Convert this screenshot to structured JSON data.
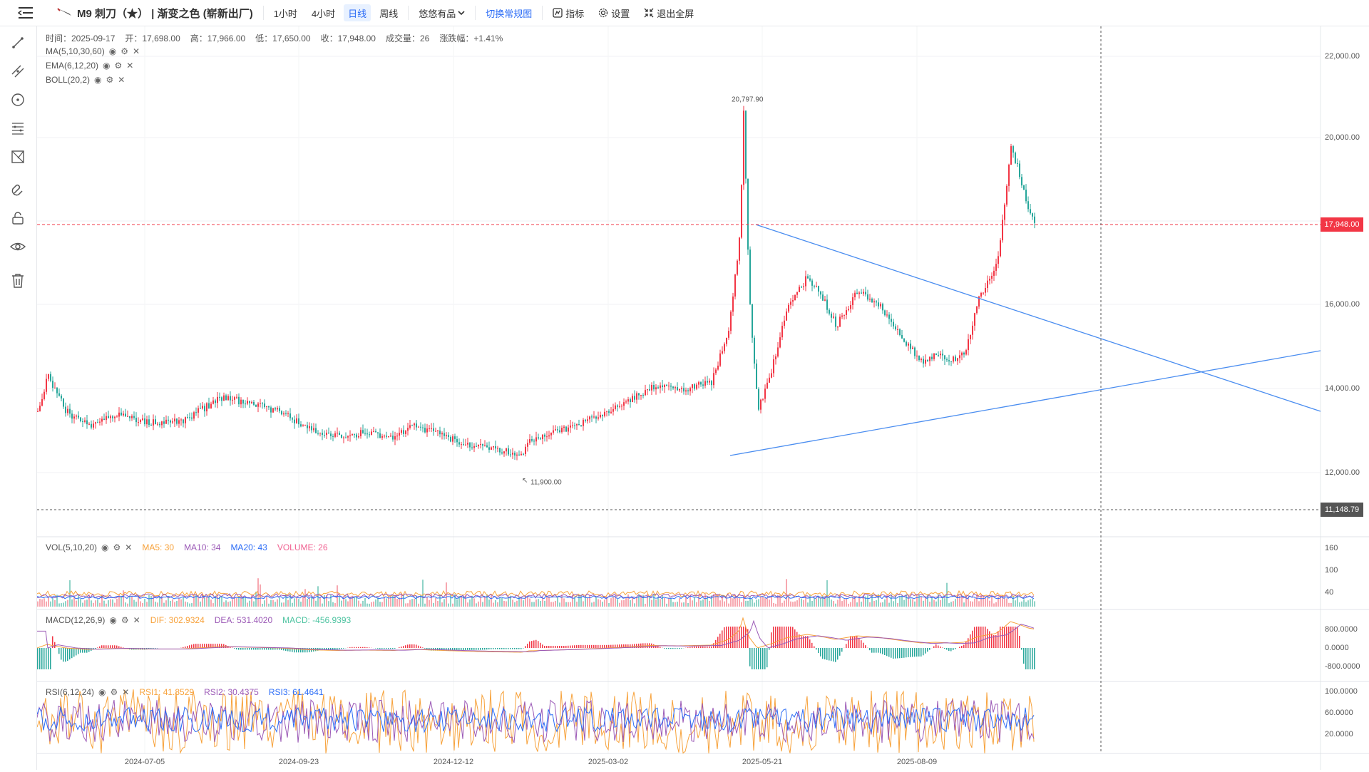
{
  "topbar": {
    "symbol": "M9 刺刀（★） | 渐变之色 (崭新出厂)",
    "intervals": [
      "1小时",
      "4小时",
      "日线",
      "周线"
    ],
    "active_interval": "日线",
    "product_select": "悠悠有品",
    "switch_view": "切换常规图",
    "indicators": "指标",
    "settings": "设置",
    "exit_fullscreen": "退出全屏"
  },
  "toolbar_icons": [
    "line-tool-icon",
    "parallel-line-icon",
    "circle-tool-icon",
    "fib-lines-icon",
    "shape-tool-icon",
    "magnet-icon",
    "lock-icon",
    "eye-icon",
    "trash-icon"
  ],
  "ohlc": {
    "time": "时间：2025-09-17",
    "open": "开：17,698.00",
    "high": "高：17,966.00",
    "low": "低：17,650.00",
    "close": "收：17,948.00",
    "volume": "成交量：26",
    "change": "涨跌幅：+1.41%"
  },
  "indicators": {
    "ma": "MA(5,10,30,60)",
    "ema": "EMA(6,12,20)",
    "boll": "BOLL(20,2)"
  },
  "main_axis": {
    "ticks": [
      "22,000.00",
      "20,000.00",
      "16,000.00",
      "14,000.00",
      "12,000.00"
    ],
    "current_price": "17,948.00",
    "crosshair_price": "11,148.79"
  },
  "annotations": {
    "max": "20,797.90",
    "min": "11,900.00"
  },
  "volume_pane": {
    "title": "VOL(5,10,20)",
    "ma5": "MA5: 30",
    "ma10": "MA10: 34",
    "ma20": "MA20: 43",
    "volume": "VOLUME: 26",
    "ticks": [
      "160",
      "100",
      "40"
    ]
  },
  "macd_pane": {
    "title": "MACD(12,26,9)",
    "dif": "DIF: 302.9324",
    "dea": "DEA: 531.4020",
    "macd": "MACD: -456.9393",
    "ticks": [
      "800.0000",
      "0.0000",
      "-800.0000"
    ]
  },
  "rsi_pane": {
    "title": "RSI(6,12,24)",
    "rsi1": "RSI1: 41.8529",
    "rsi2": "RSI2: 30.4375",
    "rsi3": "RSI3: 61.4641",
    "ticks": [
      "100.0000",
      "60.0000",
      "20.0000"
    ]
  },
  "x_axis": [
    "2024-07-05",
    "2024-09-23",
    "2024-12-12",
    "2025-03-02",
    "2025-05-21",
    "2025-08-09"
  ],
  "colors": {
    "up": "#f23645",
    "down": "#26a69a",
    "accent": "#2b6cf6",
    "trendline": "#4a8df0"
  }
}
